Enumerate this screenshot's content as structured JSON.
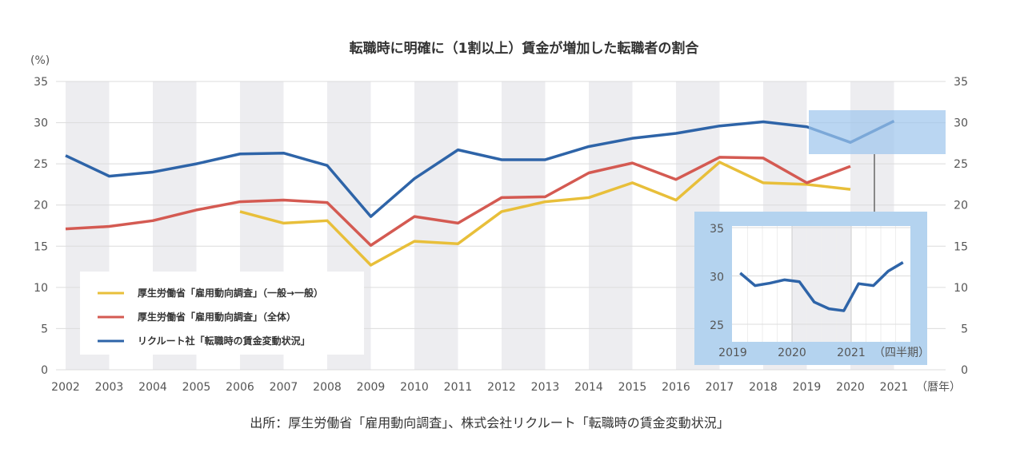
{
  "chart_data": [
    {
      "type": "line",
      "title": "転職時に明確に（1割以上）賃金が増加した転職者の割合",
      "ylabel": "(%)",
      "xlabel": "（暦年）",
      "ylim": [
        0,
        35
      ],
      "yticks": [
        0,
        5,
        10,
        15,
        20,
        25,
        30,
        35
      ],
      "grid": true,
      "legend_placement": "bottom-left",
      "x": [
        2002,
        2003,
        2004,
        2005,
        2006,
        2007,
        2008,
        2009,
        2010,
        2011,
        2012,
        2013,
        2014,
        2015,
        2016,
        2017,
        2018,
        2019,
        2020,
        2021
      ],
      "series": [
        {
          "name": "厚生労働省「雇用動向調査」（一般→一般）",
          "color": "#e8bf3a",
          "values": [
            null,
            null,
            null,
            null,
            19.2,
            17.8,
            18.1,
            12.7,
            15.6,
            15.3,
            19.2,
            20.4,
            20.9,
            22.7,
            20.6,
            25.2,
            22.7,
            22.5,
            21.9,
            null
          ]
        },
        {
          "name": "厚生労働省「雇用動向調査」（全体）",
          "color": "#d45a52",
          "values": [
            17.1,
            17.4,
            18.1,
            19.4,
            20.4,
            20.6,
            20.3,
            15.1,
            18.6,
            17.8,
            20.9,
            21.0,
            23.9,
            25.1,
            23.1,
            25.8,
            25.7,
            22.7,
            24.7,
            null
          ]
        },
        {
          "name": "リクルート社「転職時の賃金変動状況」",
          "color": "#2e64a8",
          "values": [
            26.0,
            23.5,
            24.0,
            25.0,
            26.2,
            26.3,
            24.8,
            18.6,
            23.2,
            26.7,
            25.5,
            25.5,
            27.1,
            28.1,
            28.7,
            29.6,
            30.1,
            29.5,
            27.6,
            30.2
          ]
        }
      ]
    },
    {
      "type": "line",
      "xlabel": "（四半期）",
      "ylim": [
        23.5,
        35
      ],
      "yticks": [
        25,
        30,
        35
      ],
      "xticks": [
        "2019",
        "2020",
        "2021"
      ],
      "quarters": [
        "2019Q1",
        "2019Q2",
        "2019Q3",
        "2019Q4",
        "2020Q1",
        "2020Q2",
        "2020Q3",
        "2020Q4",
        "2021Q1",
        "2021Q2",
        "2021Q3",
        "2021Q4"
      ],
      "series": [
        {
          "color": "#2e64a8",
          "values": [
            30.3,
            29.0,
            29.25,
            29.6,
            29.4,
            27.3,
            26.6,
            26.4,
            29.2,
            29.0,
            30.5,
            31.4
          ]
        }
      ]
    }
  ],
  "source": "出所：厚生労働省「雇用動向調査」、株式会社リクルート「転職時の賃金変動状況」",
  "colors": {
    "band": "#ededf0",
    "highlight": "#b4d3ef",
    "grid": "#dcdcdc"
  }
}
